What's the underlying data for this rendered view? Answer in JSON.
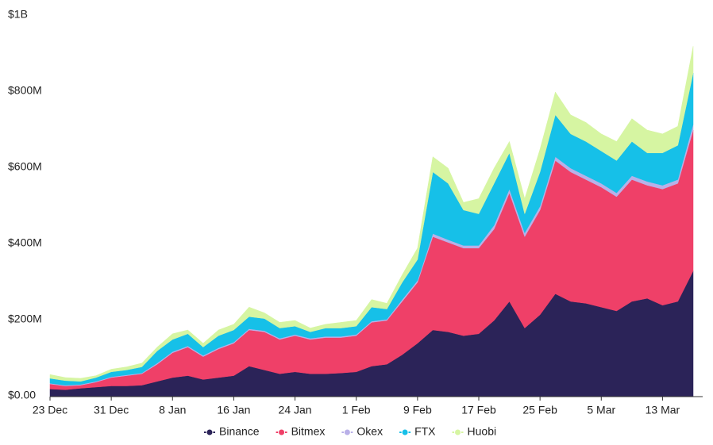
{
  "chart_data": {
    "type": "stacked_area",
    "categories": [
      "23 Dec",
      null,
      null,
      null,
      "31 Dec",
      null,
      null,
      null,
      "8 Jan",
      null,
      null,
      null,
      "16 Jan",
      null,
      null,
      null,
      "24 Jan",
      null,
      null,
      null,
      "1 Feb",
      null,
      null,
      null,
      "9 Feb",
      null,
      null,
      null,
      "17 Feb",
      null,
      null,
      null,
      "25 Feb",
      null,
      null,
      null,
      "5 Mar",
      null,
      null,
      null,
      "13 Mar",
      null,
      null
    ],
    "ylim": [
      0,
      1000
    ],
    "yticks": [
      {
        "value": 0,
        "label": "$0.00"
      },
      {
        "value": 200,
        "label": "$200M"
      },
      {
        "value": 400,
        "label": "$400M"
      },
      {
        "value": 600,
        "label": "$600M"
      },
      {
        "value": 800,
        "label": "$800M"
      },
      {
        "value": 1000,
        "label": "$1B"
      }
    ],
    "legend": "bottom",
    "series": [
      {
        "name": "Binance",
        "color": "#2b2358",
        "values": [
          20,
          18,
          22,
          25,
          28,
          28,
          30,
          40,
          50,
          55,
          45,
          50,
          55,
          80,
          70,
          60,
          65,
          60,
          60,
          62,
          65,
          80,
          85,
          110,
          140,
          175,
          170,
          160,
          165,
          200,
          250,
          180,
          215,
          270,
          250,
          245,
          235,
          225,
          250,
          258,
          240,
          250,
          330
        ]
      },
      {
        "name": "Bitmex",
        "color": "#ef4068",
        "values": [
          13,
          10,
          8,
          13,
          22,
          27,
          30,
          45,
          65,
          75,
          60,
          75,
          85,
          95,
          100,
          90,
          95,
          90,
          95,
          93,
          95,
          115,
          115,
          140,
          160,
          245,
          235,
          230,
          225,
          240,
          285,
          240,
          275,
          350,
          340,
          325,
          315,
          300,
          320,
          297,
          305,
          310,
          370
        ]
      },
      {
        "name": "Okex",
        "color": "#b9b0e8",
        "values": [
          2,
          2,
          2,
          2,
          2,
          2,
          2,
          3,
          3,
          3,
          3,
          3,
          3,
          3,
          3,
          3,
          3,
          3,
          3,
          3,
          3,
          3,
          3,
          5,
          5,
          8,
          7,
          7,
          7,
          10,
          10,
          10,
          10,
          10,
          10,
          10,
          10,
          10,
          10,
          10,
          10,
          10,
          15
        ]
      },
      {
        "name": "FTX",
        "color": "#16c0e8",
        "values": [
          13,
          12,
          8,
          10,
          13,
          13,
          16,
          32,
          32,
          32,
          22,
          32,
          32,
          32,
          32,
          27,
          22,
          17,
          22,
          22,
          22,
          37,
          27,
          45,
          55,
          162,
          148,
          93,
          83,
          110,
          95,
          50,
          90,
          110,
          90,
          90,
          85,
          85,
          90,
          75,
          85,
          90,
          135
        ]
      },
      {
        "name": "Huobi",
        "color": "#d6f5a2",
        "values": [
          10,
          8,
          8,
          5,
          7,
          8,
          10,
          10,
          15,
          10,
          10,
          15,
          15,
          25,
          15,
          15,
          15,
          10,
          10,
          15,
          15,
          20,
          15,
          20,
          30,
          40,
          40,
          20,
          40,
          40,
          30,
          40,
          60,
          60,
          50,
          50,
          45,
          50,
          60,
          60,
          50,
          50,
          70
        ]
      }
    ]
  }
}
